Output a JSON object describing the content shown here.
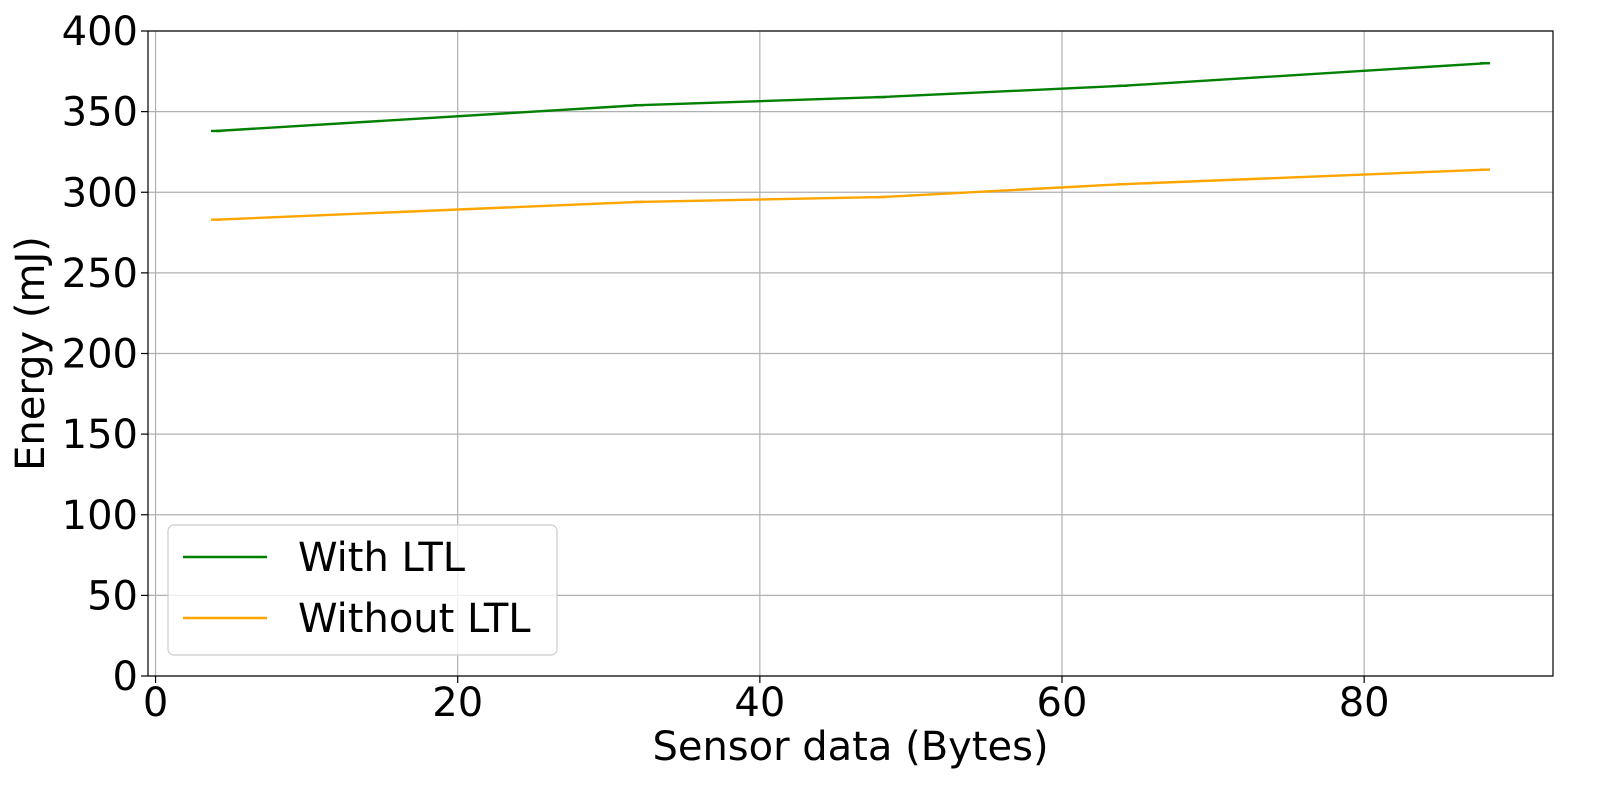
{
  "chart_data": {
    "type": "line",
    "title": "",
    "xlabel": "Sensor data (Bytes)",
    "ylabel": "Energy (mJ)",
    "xlim": [
      -0.5,
      92.5
    ],
    "ylim": [
      0,
      400
    ],
    "xticks": [
      0,
      20,
      40,
      60,
      80
    ],
    "yticks": [
      0,
      50,
      100,
      150,
      200,
      250,
      300,
      350,
      400
    ],
    "x": [
      4,
      32,
      48,
      64,
      88
    ],
    "series": [
      {
        "name": "With LTL",
        "color": "#008000",
        "values": [
          338,
          354,
          359,
          366,
          380
        ]
      },
      {
        "name": "Without LTL",
        "color": "#FFA500",
        "values": [
          283,
          294,
          297,
          305,
          314
        ]
      }
    ],
    "grid": true,
    "legend_position": "lower-left"
  }
}
